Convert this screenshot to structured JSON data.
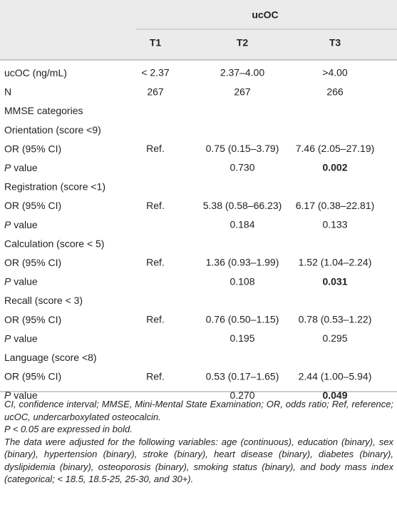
{
  "table": {
    "group_header": "ucOC",
    "columns": [
      "T1",
      "T2",
      "T3"
    ],
    "rows": [
      {
        "label": "ucOC (ng/mL)",
        "cells": [
          "< 2.37",
          "2.37–4.00",
          ">4.00"
        ]
      },
      {
        "label": "N",
        "cells": [
          267,
          267,
          266
        ]
      },
      {
        "label": "MMSE categories"
      },
      {
        "label": "Orientation (score <9)"
      },
      {
        "label": "OR (95% CI)",
        "cells": [
          "Ref.",
          "0.75 (0.15–3.79)",
          "7.46 (2.05–27.19)"
        ]
      },
      {
        "label_italic": "P",
        "label": "value",
        "cells": [
          null,
          "0.730",
          "0.002"
        ],
        "bold_cells": [
          2
        ]
      },
      {
        "label": "Registration (score <1)"
      },
      {
        "label": "OR (95% CI)",
        "cells": [
          "Ref.",
          "5.38 (0.58–66.23)",
          "6.17 (0.38–22.81)"
        ]
      },
      {
        "label_italic": "P",
        "label": "value",
        "cells": [
          null,
          "0.184",
          "0.133"
        ]
      },
      {
        "label": "Calculation (score < 5)"
      },
      {
        "label": "OR (95% CI)",
        "cells": [
          "Ref.",
          "1.36 (0.93–1.99)",
          "1.52 (1.04–2.24)"
        ]
      },
      {
        "label_italic": "P",
        "label": "value",
        "cells": [
          null,
          "0.108",
          "0.031"
        ],
        "bold_cells": [
          2
        ]
      },
      {
        "label": "Recall (score < 3)"
      },
      {
        "label": "OR (95% CI)",
        "cells": [
          "Ref.",
          "0.76 (0.50–1.15)",
          "0.78 (0.53–1.22)"
        ]
      },
      {
        "label_italic": "P",
        "label": "value",
        "cells": [
          null,
          "0.195",
          "0.295"
        ]
      },
      {
        "label": "Language (score <8)"
      },
      {
        "label": "OR (95% CI)",
        "cells": [
          "Ref.",
          "0.53 (0.17–1.65)",
          "2.44 (1.00–5.94)"
        ]
      },
      {
        "label_italic": "P",
        "label": "value",
        "cells": [
          null,
          "0.270",
          "0.049"
        ],
        "bold_cells": [
          2
        ]
      }
    ],
    "footnotes": [
      "CI, confidence interval; MMSE, Mini-Mental State Examination; OR, odds ratio; Ref, reference; ucOC, undercarboxylated osteocalcin.",
      "P < 0.05 are expressed in bold.",
      "The data were adjusted for the following variables: age (continuous), education (binary), sex (binary), hypertension (binary), stroke (binary), heart disease (binary), diabetes (binary), dyslipidemia (binary), osteoporosis (binary), smoking status (binary), and body mass index (categorical; < 18.5, 18.5-25, 25-30, and 30+)."
    ]
  }
}
